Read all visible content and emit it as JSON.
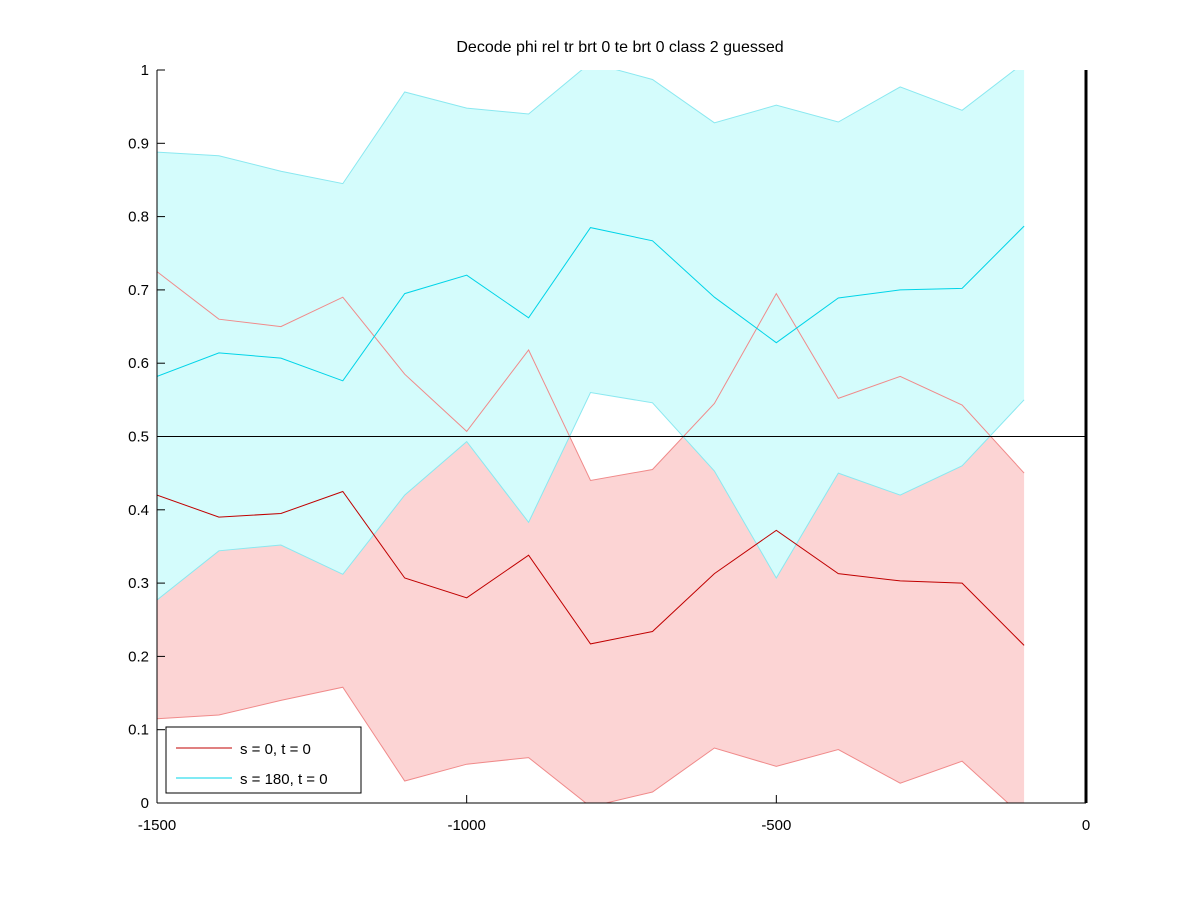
{
  "chart_data": {
    "type": "line",
    "title": "Decode phi rel tr brt 0 te brt 0  class 2 guessed",
    "xlabel": "",
    "ylabel": "",
    "xlim": [
      -1500,
      0
    ],
    "ylim": [
      0,
      1
    ],
    "xticks": [
      -1500,
      -1000,
      -500,
      0
    ],
    "xtick_labels": [
      "-1500",
      "-1000",
      "-500",
      "0"
    ],
    "yticks": [
      0,
      0.1,
      0.2,
      0.3,
      0.4,
      0.5,
      0.6,
      0.7,
      0.8,
      0.9,
      1
    ],
    "ytick_labels": [
      "0",
      "0.1",
      "0.2",
      "0.3",
      "0.4",
      "0.5",
      "0.6",
      "0.7",
      "0.8",
      "0.9",
      "1"
    ],
    "reference_line": 0.5,
    "grid": false,
    "legend_position": "bottom-left",
    "x": [
      -1500,
      -1400,
      -1300,
      -1200,
      -1100,
      -1000,
      -900,
      -800,
      -700,
      -600,
      -500,
      -400,
      -300,
      -200,
      -100
    ],
    "series": [
      {
        "name": "s = 0, t = 0",
        "color": "#c00000",
        "band_color": "#fcd4d4",
        "band_edge_color": "#f08a8a",
        "mean": [
          0.42,
          0.39,
          0.395,
          0.425,
          0.307,
          0.28,
          0.338,
          0.217,
          0.234,
          0.313,
          0.372,
          0.313,
          0.303,
          0.3,
          0.215
        ],
        "upper": [
          0.725,
          0.66,
          0.65,
          0.69,
          0.585,
          0.507,
          0.618,
          0.44,
          0.455,
          0.545,
          0.695,
          0.552,
          0.582,
          0.543,
          0.45
        ],
        "lower": [
          0.115,
          0.12,
          0.14,
          0.158,
          0.03,
          0.053,
          0.062,
          -0.005,
          0.015,
          0.075,
          0.05,
          0.073,
          0.027,
          0.057,
          -0.02
        ]
      },
      {
        "name": "s = 180, t = 0",
        "color": "#00d4e8",
        "band_color": "#d4fcfc",
        "band_edge_color": "#8ae8f0",
        "mean": [
          0.582,
          0.614,
          0.607,
          0.576,
          0.695,
          0.72,
          0.662,
          0.785,
          0.767,
          0.69,
          0.628,
          0.689,
          0.7,
          0.702,
          0.787
        ],
        "upper": [
          0.888,
          0.883,
          0.862,
          0.845,
          0.97,
          0.948,
          0.94,
          1.01,
          0.987,
          0.928,
          0.952,
          0.929,
          0.977,
          0.945,
          1.01
        ],
        "lower": [
          0.277,
          0.344,
          0.352,
          0.312,
          0.42,
          0.493,
          0.383,
          0.56,
          0.546,
          0.453,
          0.307,
          0.45,
          0.42,
          0.46,
          0.55
        ]
      }
    ]
  }
}
